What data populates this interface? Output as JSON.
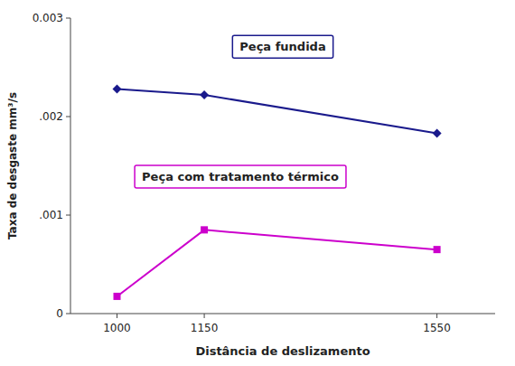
{
  "chart_data": {
    "type": "line",
    "x": [
      1000,
      1150,
      1550
    ],
    "xlabel": "Distância de deslizamento",
    "ylabel": "Taxa de desgaste mm³/s",
    "xlim": [
      920,
      1650
    ],
    "xticks": [
      1000,
      1150,
      1550
    ],
    "ylim": [
      0,
      0.003
    ],
    "yticks": [
      0,
      {
        "value": 0.001,
        "label": ".001"
      },
      {
        "value": 0.002,
        "label": ".002"
      },
      0.003
    ],
    "grid": false,
    "series": [
      {
        "name": "Peça fundida",
        "color": "#1a1a8c",
        "marker": "diamond",
        "values": [
          0.00228,
          0.00222,
          0.00183
        ]
      },
      {
        "name": "Peça com tratamento térmico",
        "color": "#cc00cc",
        "marker": "square",
        "values": [
          0.000175,
          0.00085,
          0.00065
        ]
      }
    ]
  }
}
